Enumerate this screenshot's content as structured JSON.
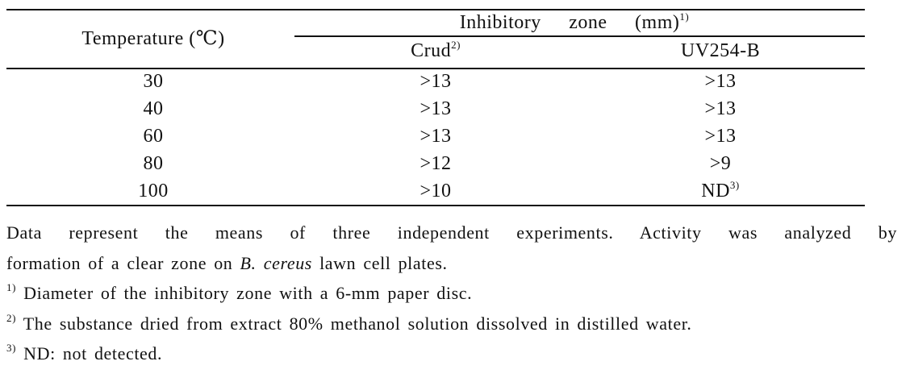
{
  "table": {
    "header": {
      "temperature": "Temperature (℃)",
      "group": "Inhibitory zone (mm)",
      "group_note": "1)",
      "columns": [
        {
          "text": "Crud",
          "note": "2)"
        },
        {
          "text": "UV254-B"
        }
      ]
    },
    "rows": [
      [
        "30",
        ">13",
        ">13"
      ],
      [
        "40",
        ">13",
        ">13"
      ],
      [
        "60",
        ">13",
        ">13"
      ],
      [
        "80",
        ">12",
        ">9"
      ],
      [
        "100",
        ">10",
        {
          "text": "ND",
          "note": "3)"
        }
      ]
    ]
  },
  "notes": {
    "line1": "Data represent the means of three independent experiments. Activity was analyzed by",
    "line2_before": "formation of a clear zone on ",
    "species": "B. cereus",
    "line2_after": " lawn cell plates.",
    "footnotes": [
      {
        "marker": "1)",
        "text": "Diameter of the inhibitory zone with a 6-mm paper disc."
      },
      {
        "marker": "2)",
        "text": "The substance dried from extract 80% methanol solution dissolved in distilled water."
      },
      {
        "marker": "3)",
        "text": "ND: not detected."
      }
    ]
  }
}
